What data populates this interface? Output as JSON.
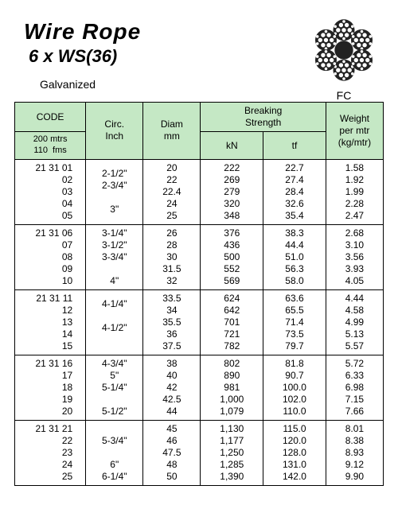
{
  "title": "Wire Rope",
  "subtitle": "6 x WS(36)",
  "finish": "Galvanized",
  "core_label": "FC",
  "headers": {
    "code": "CODE",
    "code_sub": "200 mtrs\n110  fms",
    "circ": "Circ.\nInch",
    "diam": "Diam\nmm",
    "breaking": "Breaking\nStrength",
    "kn": "kN",
    "tf": "tf",
    "weight": "Weight\nper mtr\n(kg/mtr)"
  },
  "groups": [
    {
      "code": "21 31 01\n02\n03\n04\n05",
      "circ": "2-1/2\"\n2-3/4\"\n\n3\"\n",
      "diam": "20\n22\n22.4\n24\n25",
      "kn": "222\n269\n279\n320\n348",
      "tf": "22.7\n27.4\n28.4\n32.6\n35.4",
      "wt": "1.58\n1.92\n1.99\n2.28\n2.47"
    },
    {
      "code": "21 31 06\n07\n08\n09\n10",
      "circ": "3-1/4\"\n3-1/2\"\n3-3/4\"\n\n4\"",
      "diam": "26\n28\n30\n31.5\n32",
      "kn": "376\n436\n500\n552\n569",
      "tf": "38.3\n44.4\n51.0\n56.3\n58.0",
      "wt": "2.68\n3.10\n3.56\n3.93\n4.05"
    },
    {
      "code": "21 31 11\n12\n13\n14\n15",
      "circ": "4-1/4\"\n\n4-1/2\"\n\n",
      "diam": "33.5\n34\n35.5\n36\n37.5",
      "kn": "624\n642\n701\n721\n782",
      "tf": "63.6\n65.5\n71.4\n73.5\n79.7",
      "wt": "4.44\n4.58\n4.99\n5.13\n5.57"
    },
    {
      "code": "21 31 16\n17\n18\n19\n20",
      "circ": "4-3/4\"\n5\"\n5-1/4\"\n\n5-1/2\"",
      "diam": "38\n40\n42\n42.5\n44",
      "kn": "802\n890\n981\n1,000\n1,079",
      "tf": "81.8\n90.7\n100.0\n102.0\n110.0",
      "wt": "5.72\n6.33\n6.98\n7.15\n7.66"
    },
    {
      "code": "21 31 21\n22\n23\n24\n25",
      "circ": "\n5-3/4\"\n\n6\"\n6-1/4\"",
      "diam": "45\n46\n47.5\n48\n50",
      "kn": "1,130\n1,177\n1,250\n1,285\n1,390",
      "tf": "115.0\n120.0\n128.0\n131.0\n142.0",
      "wt": "8.01\n8.38\n8.93\n9.12\n9.90"
    }
  ],
  "style": {
    "header_bg": "#c5e8c5",
    "border_color": "#000000",
    "font_size_data": 12
  }
}
